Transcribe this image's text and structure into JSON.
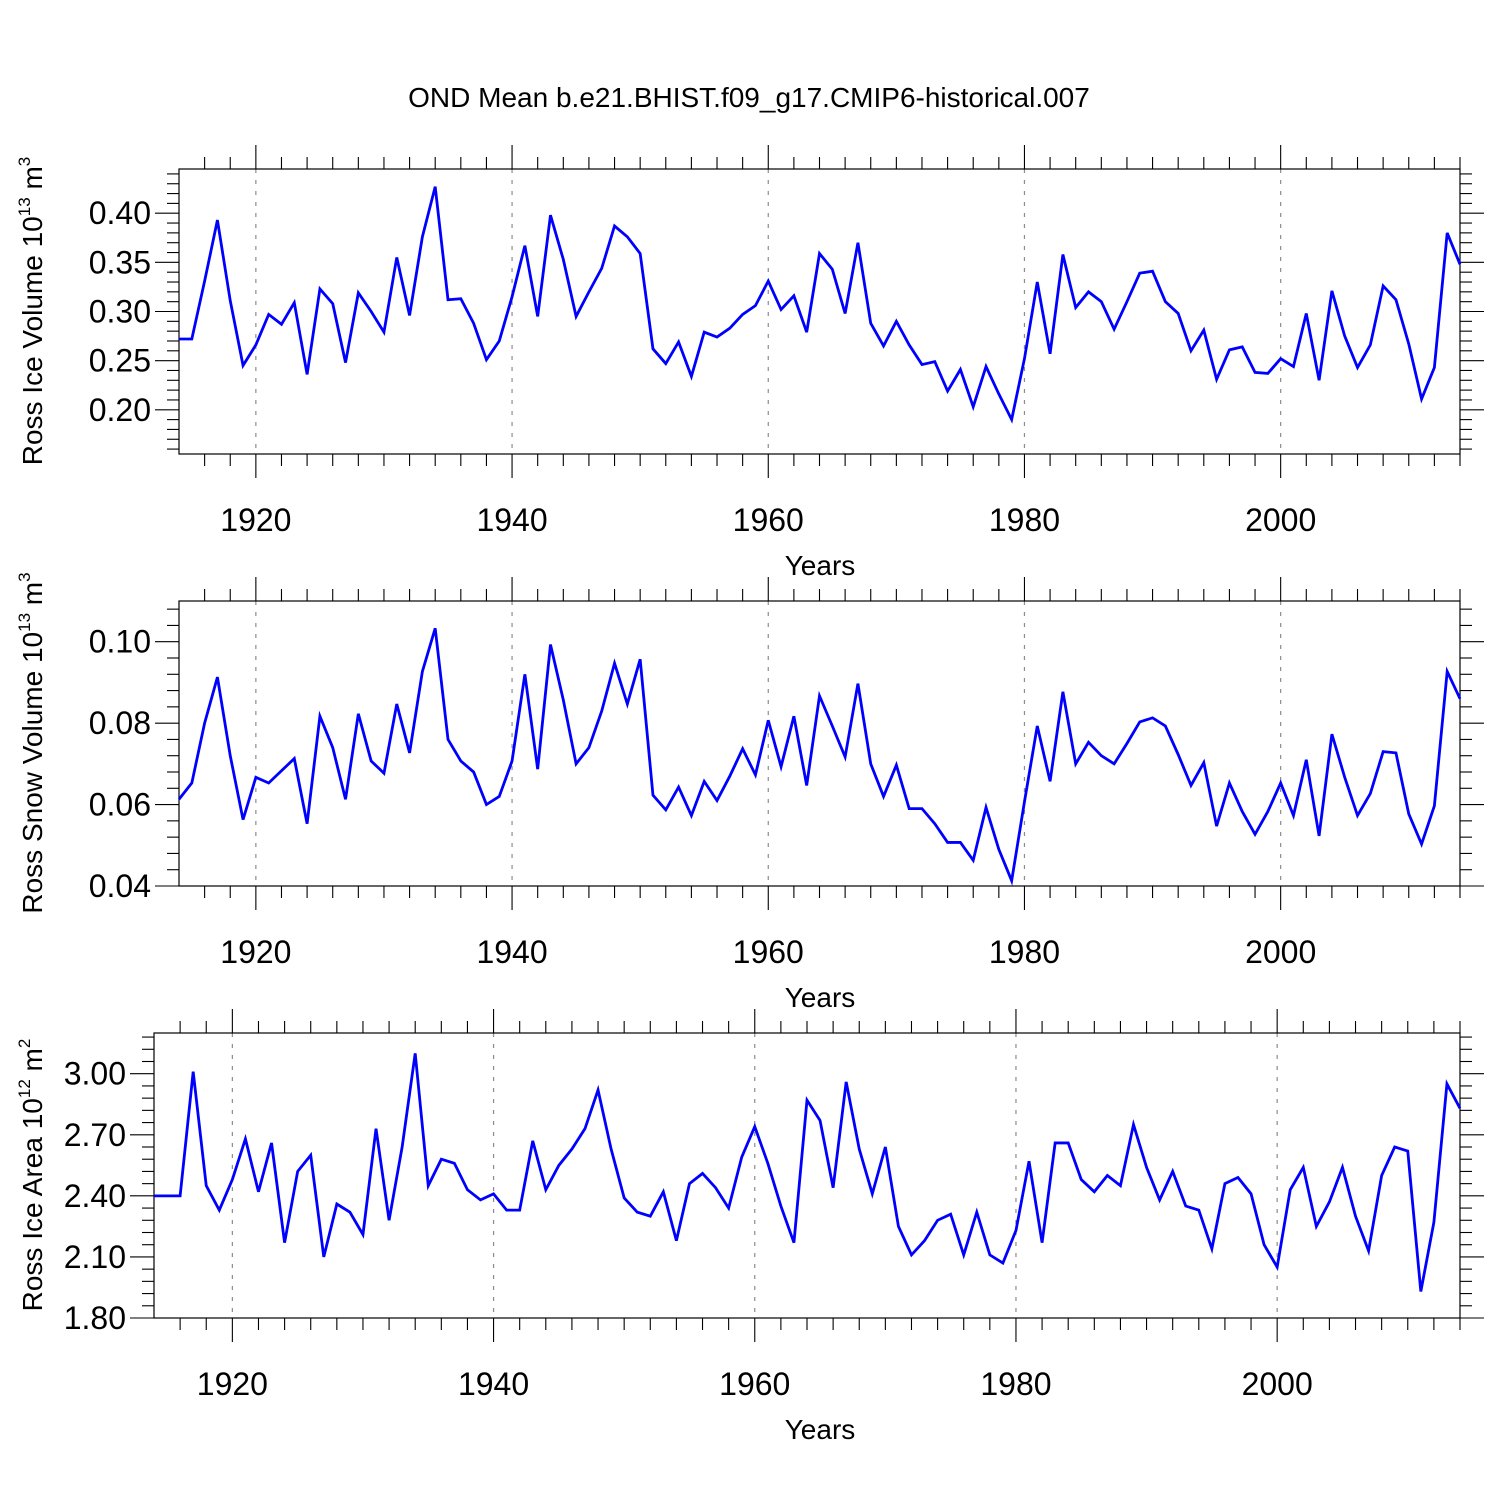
{
  "colors": {
    "series": "#0000ff",
    "axis": "#000000",
    "grid": "#8c8c8c",
    "background": "#ffffff"
  },
  "chart_data": [
    {
      "type": "line",
      "title": "OND Mean b.e21.BHIST.f09_g17.CMIP6-historical.007",
      "ylabel_main": "Ross Ice Volume 10",
      "ylabel_exp": "13",
      "ylabel_tail": " m",
      "ylabel_pow": "3",
      "xlabel": "Years",
      "xlim": [
        1914,
        2014
      ],
      "ylim": [
        0.155,
        0.445
      ],
      "yticks": [
        0.2,
        0.25,
        0.3,
        0.35,
        0.4
      ],
      "ytick_labels": [
        "0.20",
        "0.25",
        "0.30",
        "0.35",
        "0.40"
      ],
      "xticks": [
        1920,
        1940,
        1960,
        1980,
        2000
      ],
      "xtick_labels": [
        "1920",
        "1940",
        "1960",
        "1980",
        "2000"
      ],
      "x_start": 1914,
      "values": [
        0.272,
        0.272,
        0.331,
        0.393,
        0.311,
        0.245,
        0.266,
        0.297,
        0.287,
        0.309,
        0.236,
        0.323,
        0.308,
        0.248,
        0.319,
        0.3,
        0.279,
        0.355,
        0.296,
        0.376,
        0.427,
        0.312,
        0.313,
        0.288,
        0.251,
        0.27,
        0.315,
        0.367,
        0.295,
        0.398,
        0.353,
        0.295,
        0.32,
        0.344,
        0.387,
        0.376,
        0.359,
        0.262,
        0.247,
        0.269,
        0.234,
        0.279,
        0.274,
        0.283,
        0.297,
        0.306,
        0.331,
        0.302,
        0.316,
        0.279,
        0.359,
        0.343,
        0.298,
        0.37,
        0.288,
        0.265,
        0.29,
        0.266,
        0.246,
        0.249,
        0.219,
        0.241,
        0.203,
        0.244,
        0.216,
        0.19,
        0.252,
        0.33,
        0.257,
        0.358,
        0.304,
        0.32,
        0.31,
        0.282,
        0.31,
        0.339,
        0.341,
        0.31,
        0.298,
        0.26,
        0.281,
        0.231,
        0.261,
        0.264,
        0.238,
        0.237,
        0.252,
        0.244,
        0.298,
        0.23,
        0.321,
        0.275,
        0.243,
        0.266,
        0.326,
        0.312,
        0.267,
        0.211,
        0.243,
        0.38,
        0.348
      ]
    },
    {
      "type": "line",
      "title": "",
      "ylabel_main": "Ross Snow Volume 10",
      "ylabel_exp": "13",
      "ylabel_tail": " m",
      "ylabel_pow": "3",
      "xlabel": "Years",
      "xlim": [
        1914,
        2014
      ],
      "ylim": [
        0.04,
        0.11
      ],
      "yticks": [
        0.04,
        0.06,
        0.08,
        0.1
      ],
      "ytick_labels": [
        "0.04",
        "0.06",
        "0.08",
        "0.10"
      ],
      "xticks": [
        1920,
        1940,
        1960,
        1980,
        2000
      ],
      "xtick_labels": [
        "1920",
        "1940",
        "1960",
        "1980",
        "2000"
      ],
      "x_start": 1914,
      "values": [
        0.0613,
        0.0653,
        0.08,
        0.0913,
        0.072,
        0.0563,
        0.0667,
        0.0653,
        0.0683,
        0.0713,
        0.0553,
        0.0817,
        0.074,
        0.0613,
        0.0823,
        0.0707,
        0.0677,
        0.0847,
        0.0727,
        0.0927,
        0.1033,
        0.076,
        0.0707,
        0.068,
        0.06,
        0.062,
        0.0707,
        0.092,
        0.0687,
        0.0993,
        0.0857,
        0.07,
        0.074,
        0.083,
        0.0947,
        0.0847,
        0.0957,
        0.0623,
        0.0587,
        0.0643,
        0.0573,
        0.0657,
        0.061,
        0.067,
        0.0737,
        0.0673,
        0.0807,
        0.0693,
        0.0817,
        0.0647,
        0.0867,
        0.0793,
        0.0717,
        0.0897,
        0.07,
        0.062,
        0.0697,
        0.059,
        0.059,
        0.0553,
        0.0507,
        0.0507,
        0.0463,
        0.0593,
        0.049,
        0.0413,
        0.0607,
        0.0793,
        0.0657,
        0.0877,
        0.07,
        0.0753,
        0.072,
        0.07,
        0.075,
        0.0803,
        0.0813,
        0.0793,
        0.0723,
        0.0647,
        0.0703,
        0.0547,
        0.0653,
        0.0583,
        0.0527,
        0.0583,
        0.0653,
        0.0573,
        0.071,
        0.0523,
        0.0773,
        0.0667,
        0.0573,
        0.0627,
        0.073,
        0.0727,
        0.0577,
        0.0503,
        0.0597,
        0.0927,
        0.086
      ]
    },
    {
      "type": "line",
      "title": "",
      "ylabel_main": "Ross Ice Area 10",
      "ylabel_exp": "12",
      "ylabel_tail": " m",
      "ylabel_pow": "2",
      "xlabel": "Years",
      "xlim": [
        1914,
        2014
      ],
      "ylim": [
        1.8,
        3.2
      ],
      "yticks": [
        1.8,
        2.1,
        2.4,
        2.7,
        3.0
      ],
      "ytick_labels": [
        "1.80",
        "2.10",
        "2.40",
        "2.70",
        "3.00"
      ],
      "xticks": [
        1920,
        1940,
        1960,
        1980,
        2000
      ],
      "xtick_labels": [
        "1920",
        "1940",
        "1960",
        "1980",
        "2000"
      ],
      "x_start": 1914,
      "values": [
        2.4,
        2.4,
        2.4,
        3.01,
        2.45,
        2.33,
        2.48,
        2.68,
        2.42,
        2.66,
        2.17,
        2.52,
        2.6,
        2.1,
        2.36,
        2.32,
        2.21,
        2.73,
        2.28,
        2.64,
        3.1,
        2.45,
        2.58,
        2.56,
        2.43,
        2.38,
        2.41,
        2.33,
        2.33,
        2.67,
        2.43,
        2.55,
        2.63,
        2.73,
        2.92,
        2.63,
        2.39,
        2.32,
        2.3,
        2.42,
        2.18,
        2.46,
        2.51,
        2.44,
        2.34,
        2.59,
        2.74,
        2.56,
        2.35,
        2.17,
        2.87,
        2.77,
        2.44,
        2.96,
        2.63,
        2.41,
        2.64,
        2.25,
        2.11,
        2.18,
        2.28,
        2.31,
        2.11,
        2.32,
        2.11,
        2.07,
        2.23,
        2.57,
        2.17,
        2.66,
        2.66,
        2.48,
        2.42,
        2.5,
        2.45,
        2.75,
        2.54,
        2.38,
        2.52,
        2.35,
        2.33,
        2.14,
        2.46,
        2.49,
        2.41,
        2.16,
        2.05,
        2.43,
        2.54,
        2.25,
        2.37,
        2.54,
        2.3,
        2.13,
        2.5,
        2.64,
        2.62,
        1.93,
        2.27,
        2.95,
        2.83
      ]
    }
  ]
}
